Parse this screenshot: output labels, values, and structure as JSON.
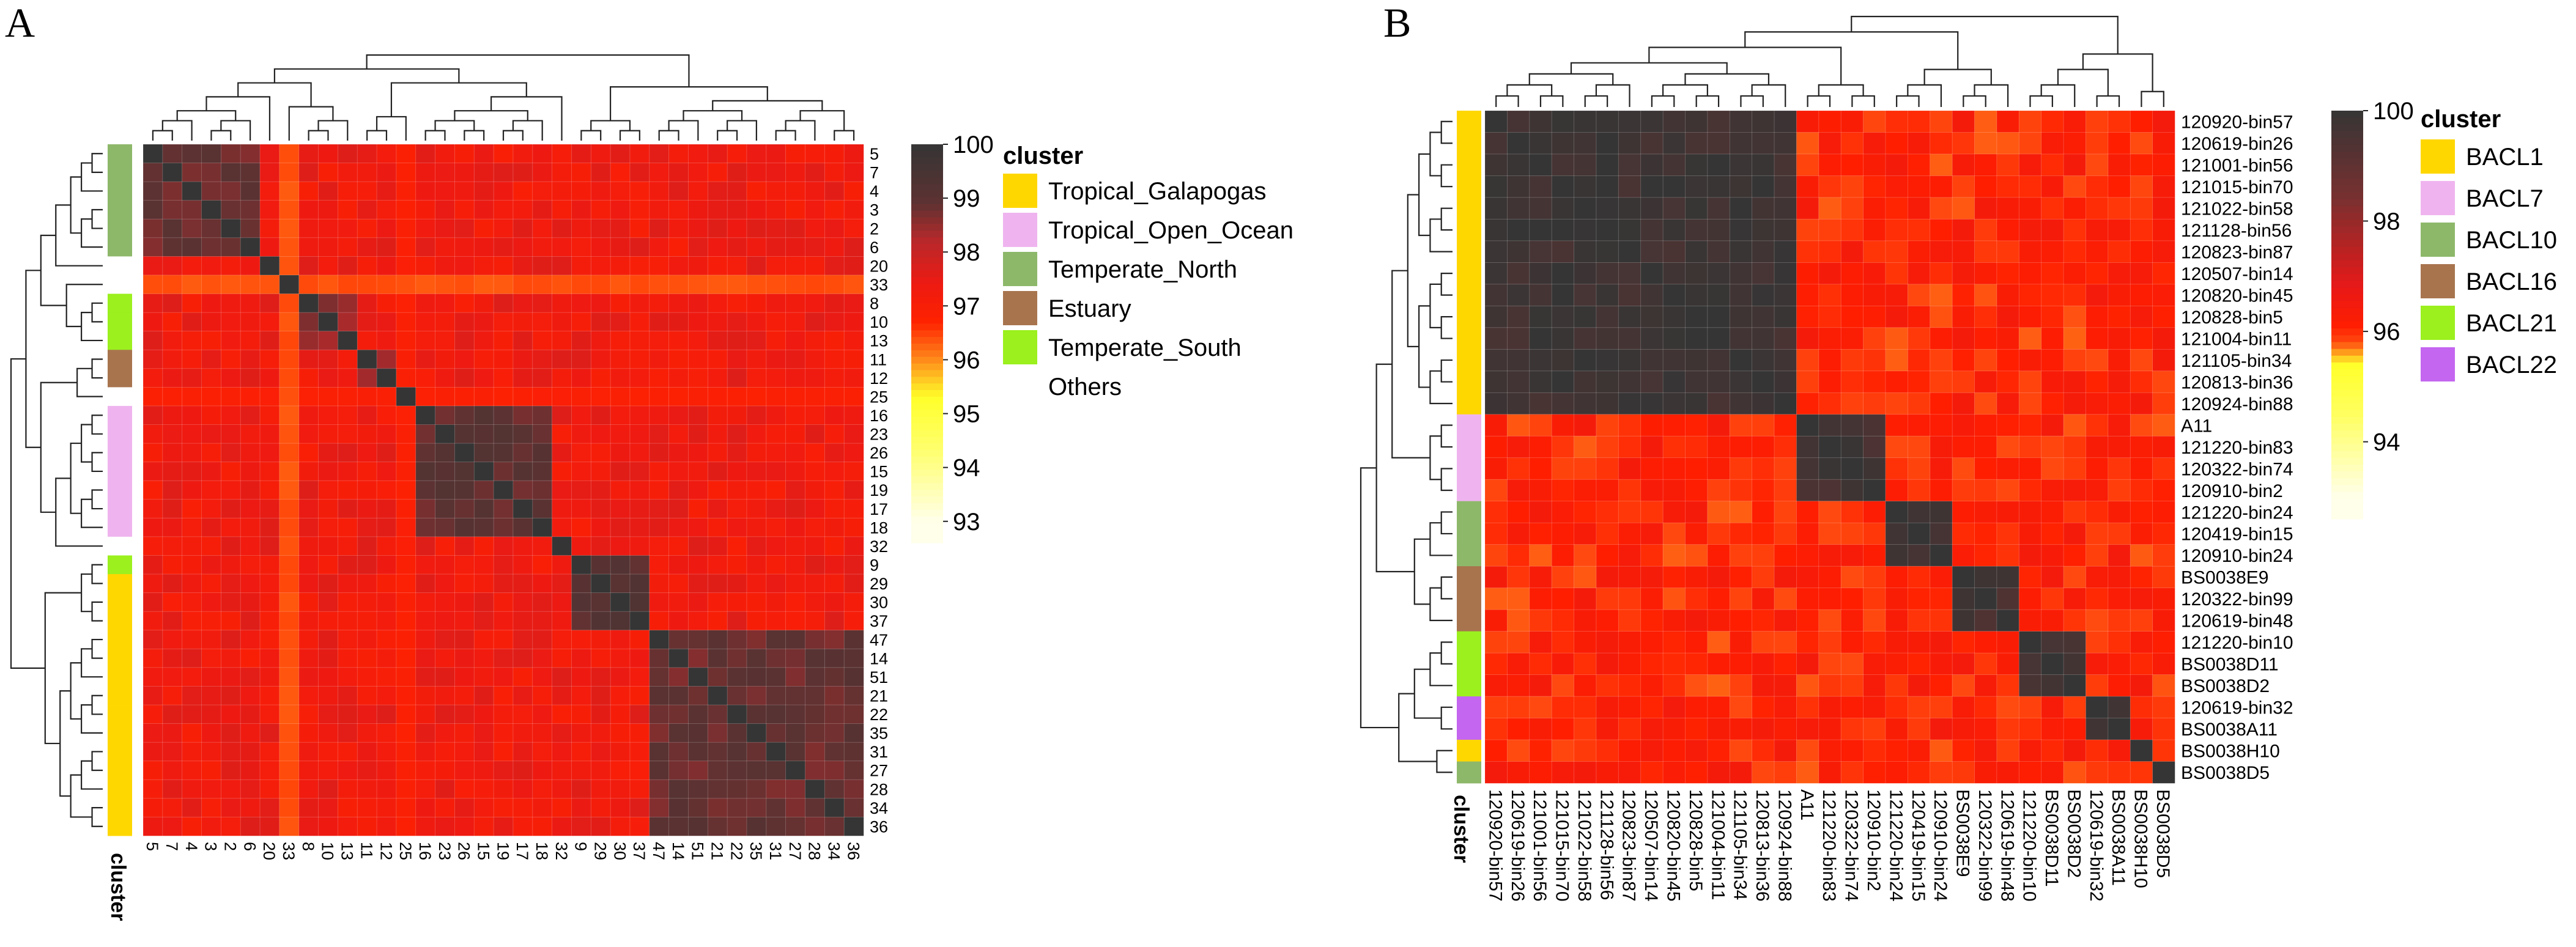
{
  "figure": {
    "panels": [
      {
        "letter": "A",
        "cluster_label": "cluster",
        "legend_title": "cluster",
        "legend": [
          {
            "name": "Tropical_Galapogas",
            "color": "#FFD700"
          },
          {
            "name": "Tropical_Open_Ocean",
            "color": "#EFB4EF"
          },
          {
            "name": "Temperate_North",
            "color": "#8DB86A"
          },
          {
            "name": "Estuary",
            "color": "#A8744E"
          },
          {
            "name": "Temperate_South",
            "color": "#9BF01E"
          },
          {
            "name": "Others",
            "color": "#FFFFFF"
          }
        ],
        "colorbar_ticks": [
          "100",
          "99",
          "98",
          "97",
          "96",
          "95",
          "94",
          "93"
        ]
      },
      {
        "letter": "B",
        "cluster_label": "cluster",
        "legend_title": "cluster",
        "legend": [
          {
            "name": "BACL1",
            "color": "#FFD700"
          },
          {
            "name": "BACL7",
            "color": "#EFB4EF"
          },
          {
            "name": "BACL10",
            "color": "#8DB86A"
          },
          {
            "name": "BACL16",
            "color": "#A8744E"
          },
          {
            "name": "BACL21",
            "color": "#9BF01E"
          },
          {
            "name": "BACL22",
            "color": "#C466F0"
          }
        ],
        "colorbar_ticks": [
          "100",
          "98",
          "96",
          "94"
        ]
      }
    ]
  },
  "chart_data": [
    {
      "type": "heatmap",
      "title": "A",
      "value_range": [
        93,
        100
      ],
      "color_scale": [
        "#FFFFE6",
        "#FFFF33",
        "#FF2200",
        "#E8161A",
        "#3A3A3A"
      ],
      "row_labels": [
        "5",
        "7",
        "4",
        "3",
        "2",
        "6",
        "20",
        "33",
        "8",
        "10",
        "13",
        "11",
        "12",
        "25",
        "16",
        "23",
        "26",
        "15",
        "19",
        "17",
        "18",
        "32",
        "9",
        "29",
        "30",
        "37",
        "47",
        "14",
        "51",
        "21",
        "22",
        "35",
        "31",
        "27",
        "28",
        "34",
        "36"
      ],
      "col_labels": [
        "5",
        "7",
        "4",
        "3",
        "2",
        "6",
        "20",
        "33",
        "8",
        "10",
        "13",
        "11",
        "12",
        "25",
        "16",
        "23",
        "26",
        "15",
        "19",
        "17",
        "18",
        "32",
        "9",
        "29",
        "30",
        "37",
        "47",
        "14",
        "51",
        "21",
        "22",
        "35",
        "31",
        "27",
        "28",
        "34",
        "36"
      ],
      "row_clusters": [
        "Temperate_North",
        "Temperate_North",
        "Temperate_North",
        "Temperate_North",
        "Temperate_North",
        "Temperate_North",
        "Others",
        "Others",
        "Temperate_South",
        "Temperate_South",
        "Temperate_South",
        "Estuary",
        "Estuary",
        "Others",
        "Tropical_Open_Ocean",
        "Tropical_Open_Ocean",
        "Tropical_Open_Ocean",
        "Tropical_Open_Ocean",
        "Tropical_Open_Ocean",
        "Tropical_Open_Ocean",
        "Tropical_Open_Ocean",
        "Others",
        "Temperate_South",
        "Tropical_Galapogas",
        "Tropical_Galapogas",
        "Tropical_Galapogas",
        "Tropical_Galapogas",
        "Tropical_Galapogas",
        "Tropical_Galapogas",
        "Tropical_Galapogas",
        "Tropical_Galapogas",
        "Tropical_Galapogas",
        "Tropical_Galapogas",
        "Tropical_Galapogas",
        "Tropical_Galapogas",
        "Tropical_Galapogas",
        "Tropical_Galapogas"
      ],
      "blocks": [
        {
          "start": 0,
          "end": 5,
          "within": 98.6
        },
        {
          "start": 8,
          "end": 10,
          "within": 98.2
        },
        {
          "start": 11,
          "end": 12,
          "within": 98.3
        },
        {
          "start": 14,
          "end": 20,
          "within": 98.7
        },
        {
          "start": 22,
          "end": 25,
          "within": 98.8
        },
        {
          "start": 26,
          "end": 36,
          "within": 98.6
        }
      ],
      "outliers": [
        {
          "index": 7,
          "value": 96.3
        },
        {
          "index": 13,
          "value": 96.8
        }
      ],
      "background": 97.3
    },
    {
      "type": "heatmap",
      "title": "B",
      "value_range": [
        93,
        100
      ],
      "color_scale": [
        "#FFFFE6",
        "#FFFF33",
        "#FF2200",
        "#E8161A",
        "#3A3A3A"
      ],
      "row_labels": [
        "120920-bin57",
        "120619-bin26",
        "121001-bin56",
        "121015-bin70",
        "121022-bin58",
        "121128-bin56",
        "120823-bin87",
        "120507-bin14",
        "120820-bin45",
        "120828-bin5",
        "121004-bin11",
        "121105-bin34",
        "120813-bin36",
        "120924-bin88",
        "A11",
        "121220-bin83",
        "120322-bin74",
        "120910-bin2",
        "121220-bin24",
        "120419-bin15",
        "120910-bin24",
        "BS0038E9",
        "120322-bin99",
        "120619-bin48",
        "121220-bin10",
        "BS0038D11",
        "BS0038D2",
        "120619-bin32",
        "BS0038A11",
        "BS0038H10",
        "BS0038D5"
      ],
      "col_labels": [
        "120920-bin57",
        "120619-bin26",
        "121001-bin56",
        "121015-bin70",
        "121022-bin58",
        "121128-bin56",
        "120823-bin87",
        "120507-bin14",
        "120820-bin45",
        "120828-bin5",
        "121004-bin11",
        "121105-bin34",
        "120813-bin36",
        "120924-bin88",
        "A11",
        "121220-bin83",
        "120322-bin74",
        "120910-bin2",
        "121220-bin24",
        "120419-bin15",
        "120910-bin24",
        "BS0038E9",
        "120322-bin99",
        "120619-bin48",
        "121220-bin10",
        "BS0038D11",
        "BS0038D2",
        "120619-bin32",
        "BS0038A11",
        "BS0038H10",
        "BS0038D5"
      ],
      "row_clusters": [
        "BACL1",
        "BACL1",
        "BACL1",
        "BACL1",
        "BACL1",
        "BACL1",
        "BACL1",
        "BACL1",
        "BACL1",
        "BACL1",
        "BACL1",
        "BACL1",
        "BACL1",
        "BACL1",
        "BACL7",
        "BACL7",
        "BACL7",
        "BACL7",
        "BACL10",
        "BACL10",
        "BACL10",
        "BACL16",
        "BACL16",
        "BACL16",
        "BACL21",
        "BACL21",
        "BACL21",
        "BACL22",
        "BACL22",
        "BACL1",
        "BACL10"
      ],
      "blocks": [
        {
          "start": 0,
          "end": 13,
          "within": 99.5
        },
        {
          "start": 14,
          "end": 17,
          "within": 99.4
        },
        {
          "start": 18,
          "end": 20,
          "within": 99.4
        },
        {
          "start": 21,
          "end": 23,
          "within": 99.3
        },
        {
          "start": 24,
          "end": 26,
          "within": 99.4
        },
        {
          "start": 27,
          "end": 28,
          "within": 99.4
        }
      ],
      "outliers": [],
      "background": 96.1
    }
  ]
}
